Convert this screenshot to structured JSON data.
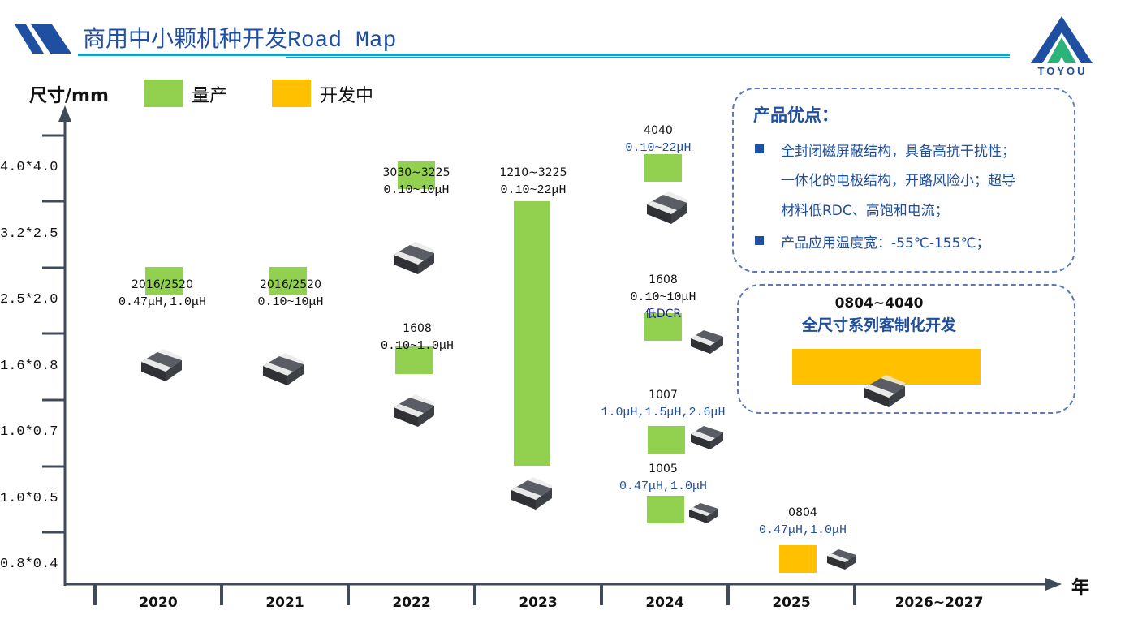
{
  "header": {
    "title_cn": "商用中小颗机种开发",
    "title_en": "Road Map",
    "logo_text": "TOYOU",
    "colors": {
      "title": "#1e4fa0",
      "rule": "#1aa0c8",
      "logo_dark": "#1e4fa0",
      "logo_green": "#2db37a"
    }
  },
  "legend": [
    {
      "label": "量产",
      "color": "#92d050"
    },
    {
      "label": "开发中",
      "color": "#ffc000"
    }
  ],
  "chart_data": {
    "type": "bar",
    "title": "商用中小颗机种开发Road Map",
    "ylabel": "尺寸/mm",
    "xlabel": "年",
    "categories": [
      "2020",
      "2021",
      "2022",
      "2023",
      "2024",
      "2025",
      "2026~2027"
    ],
    "y_levels": [
      "0.8*0.4",
      "1.0*0.5",
      "1.0*0.7",
      "1.6*0.8",
      "2.5*2.0",
      "3.2*2.5",
      "4.0*4.0"
    ],
    "series_colors": {
      "mass_production": "#92d050",
      "in_development": "#ffc000"
    },
    "items": [
      {
        "year": "2020",
        "size": "2016/2520",
        "inductance": "0.47μH,1.0μH",
        "status": "mass_production",
        "level_from": 4.3,
        "level_to": 4.3
      },
      {
        "year": "2021",
        "size": "2016/2520",
        "inductance": "0.10~10μH",
        "status": "mass_production",
        "level_from": 4.3,
        "level_to": 4.3
      },
      {
        "year": "2022",
        "size": "3030~3225",
        "inductance": "0.10~10μH",
        "status": "mass_production",
        "level_from": 5.9,
        "level_to": 5.9
      },
      {
        "year": "2022",
        "size": "1608",
        "inductance": "0.10~1.0μH",
        "status": "mass_production",
        "level_from": 3.1,
        "level_to": 3.1
      },
      {
        "year": "2023",
        "size": "1210~3225",
        "inductance": "0.10~22μH",
        "status": "mass_production",
        "level_from": 1.5,
        "level_to": 5.5
      },
      {
        "year": "2024",
        "size": "4040",
        "inductance": "0.10~22μH",
        "status": "mass_production",
        "level_from": 6.0,
        "level_to": 6.0
      },
      {
        "year": "2024",
        "size": "1608",
        "inductance": "0.10~10μH",
        "note": "低DCR",
        "status": "mass_production",
        "level_from": 3.6,
        "level_to": 3.6
      },
      {
        "year": "2024",
        "size": "1007",
        "inductance": "1.0μH,1.5μH,2.6μH",
        "status": "mass_production",
        "level_from": 1.9,
        "level_to": 1.9
      },
      {
        "year": "2024",
        "size": "1005",
        "inductance": "0.47μH,1.0μH",
        "status": "mass_production",
        "level_from": 0.85,
        "level_to": 0.85
      },
      {
        "year": "2025",
        "size": "0804",
        "inductance": "0.47μH,1.0μH",
        "status": "in_development",
        "level_from": 0.1,
        "level_to": 0.1
      },
      {
        "year": "2026~2027",
        "size": "0804~4040",
        "inductance": "全尺寸系列客制化开发",
        "status": "in_development",
        "level_from": 3.0,
        "level_to": 3.0
      }
    ]
  },
  "advantages": {
    "title": "产品优点：",
    "bullets": [
      [
        "全封闭磁屏蔽结构，具备高抗干扰性；",
        "一体化的电极结构，开路风险小；超导",
        "材料低RDC、高饱和电流；"
      ],
      [
        "产品应用温度宽：-55℃-155℃；"
      ]
    ]
  },
  "development": {
    "size_range": "0804~4040",
    "description": "全尺寸系列客制化开发"
  }
}
